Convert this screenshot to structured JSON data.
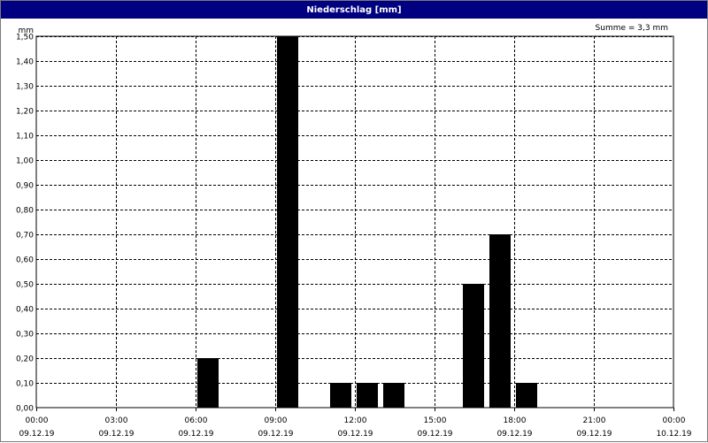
{
  "window": {
    "title": "Niederschlag [mm]"
  },
  "summary": {
    "text": "Summe = 3,3 mm"
  },
  "chart_data": {
    "type": "bar",
    "title": "Niederschlag [mm]",
    "ylabel": "mm",
    "xlabel": "",
    "ylim": [
      0,
      1.5
    ],
    "y_ticks": [
      "0,00",
      "0,10",
      "0,20",
      "0,30",
      "0,40",
      "0,50",
      "0,60",
      "0,70",
      "0,80",
      "0,90",
      "1,00",
      "1,10",
      "1,20",
      "1,30",
      "1,40",
      "1,50"
    ],
    "x_ticks": [
      {
        "time": "00:00",
        "date": "09.12.19"
      },
      {
        "time": "03:00",
        "date": "09.12.19"
      },
      {
        "time": "06:00",
        "date": "09.12.19"
      },
      {
        "time": "09:00",
        "date": "09.12.19"
      },
      {
        "time": "12:00",
        "date": "09.12.19"
      },
      {
        "time": "15:00",
        "date": "09.12.19"
      },
      {
        "time": "18:00",
        "date": "09.12.19"
      },
      {
        "time": "21:00",
        "date": "09.12.19"
      },
      {
        "time": "00:00",
        "date": "10.12.19"
      }
    ],
    "x_range_hours": [
      0,
      24
    ],
    "bars": [
      {
        "hour": 6,
        "value": 0.2
      },
      {
        "hour": 9,
        "value": 1.5
      },
      {
        "hour": 11,
        "value": 0.1
      },
      {
        "hour": 12,
        "value": 0.1
      },
      {
        "hour": 13,
        "value": 0.1
      },
      {
        "hour": 16,
        "value": 0.5
      },
      {
        "hour": 17,
        "value": 0.7
      },
      {
        "hour": 18,
        "value": 0.1
      }
    ],
    "grid": true,
    "bar_color": "#000000",
    "total": "3,3 mm"
  }
}
